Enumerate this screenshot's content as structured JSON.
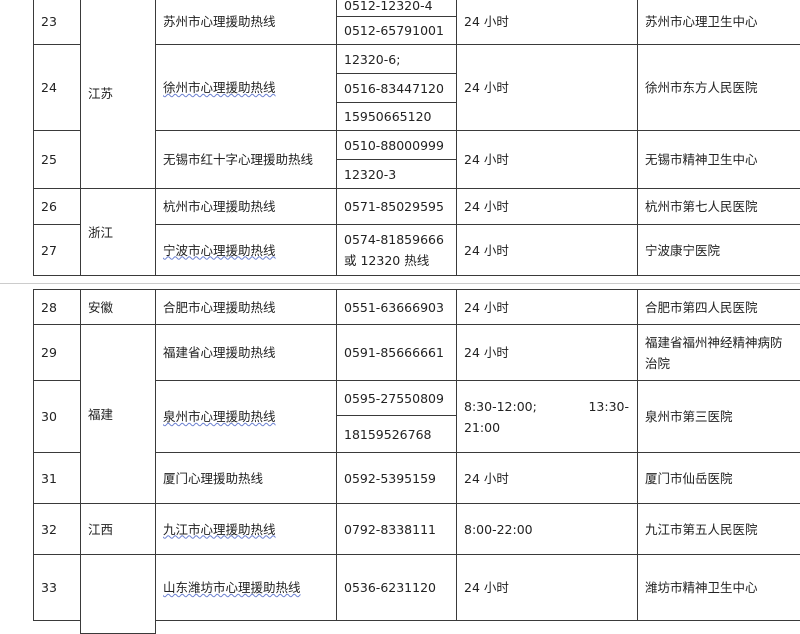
{
  "rows": [
    {
      "no": "23",
      "name": "苏州市心理援助热线",
      "phones": [
        "0512-12320-4",
        "0512-65791001"
      ],
      "hours": "24 小时",
      "org": "苏州市心理卫生中心"
    },
    {
      "no": "24",
      "name": "徐州市心理援助热线",
      "phones": [
        "12320-6;",
        "0516-83447120",
        "15950665120"
      ],
      "hours": "24 小时",
      "org": "徐州市东方人民医院"
    },
    {
      "no": "25",
      "name": "无锡市红十字心理援助热线",
      "phones": [
        "0510-88000999",
        "12320-3"
      ],
      "hours": "24 小时",
      "org": "无锡市精神卫生中心"
    },
    {
      "no": "26",
      "name": "杭州市心理援助热线",
      "phones": [
        "0571-85029595"
      ],
      "hours": "24 小时",
      "org": "杭州市第七人民医院"
    },
    {
      "no": "27",
      "name": "宁波市心理援助热线",
      "phones": [
        "0574-81859666 或 12320 热线"
      ],
      "hours": "24 小时",
      "org": "宁波康宁医院"
    },
    {
      "no": "28",
      "name": "合肥市心理援助热线",
      "phones": [
        "0551-63666903"
      ],
      "hours": "24 小时",
      "org": "合肥市第四人民医院"
    },
    {
      "no": "29",
      "name": "福建省心理援助热线",
      "phones": [
        "0591-85666661"
      ],
      "hours": "24 小时",
      "org": "福建省福州神经精神病防治院"
    },
    {
      "no": "30",
      "name": "泉州市心理援助热线",
      "phones": [
        "0595-27550809",
        "18159526768"
      ],
      "hours": "8:30-12:00;        13:30-21:00",
      "hours_parts": [
        "8:30-12:00;",
        "13:30-"
      ],
      "hours_line2": "21:00",
      "org": "泉州市第三医院"
    },
    {
      "no": "31",
      "name": "厦门心理援助热线",
      "phones": [
        "0592-5395159"
      ],
      "hours": "24 小时",
      "org": "厦门市仙岳医院"
    },
    {
      "no": "32",
      "name": "九江市心理援助热线",
      "phones": [
        "0792-8338111"
      ],
      "hours": "8:00-22:00",
      "org": "九江市第五人民医院"
    },
    {
      "no": "33",
      "name": "山东潍坊市心理援助热线",
      "phones": [
        "0536-6231120"
      ],
      "hours": "24 小时",
      "org": "潍坊市精神卫生中心"
    }
  ],
  "provinces": {
    "jiangsu": "江苏",
    "zhejiang": "浙江",
    "anhui": "安徽",
    "fujian": "福建",
    "jiangxi": "江西",
    "shandong": ""
  }
}
